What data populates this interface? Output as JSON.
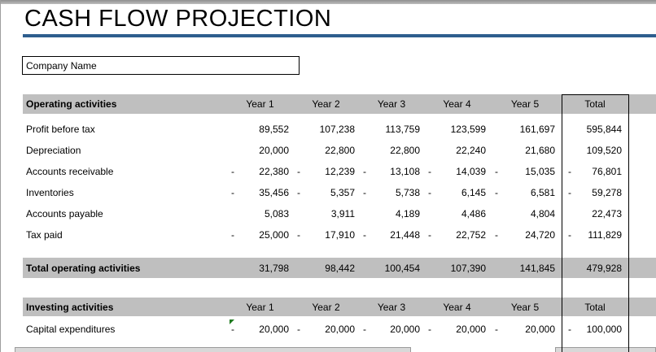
{
  "title": "CASH FLOW PROJECTION",
  "company": {
    "value": "Company Name"
  },
  "columns": [
    "Year 1",
    "Year 2",
    "Year 3",
    "Year 4",
    "Year 5",
    "Total"
  ],
  "sections": [
    {
      "id": "operating",
      "header": "Operating activities",
      "rows": [
        {
          "label": "Profit before tax",
          "values": [
            89552,
            107238,
            113759,
            123599,
            161697,
            595844
          ]
        },
        {
          "label": "Depreciation",
          "values": [
            20000,
            22800,
            22800,
            22240,
            21680,
            109520
          ]
        },
        {
          "label": "Accounts receivable",
          "values": [
            -22380,
            -12239,
            -13108,
            -14039,
            -15035,
            -76801
          ]
        },
        {
          "label": "Inventories",
          "values": [
            -35456,
            -5357,
            -5738,
            -6145,
            -6581,
            -59278
          ]
        },
        {
          "label": "Accounts payable",
          "values": [
            5083,
            3911,
            4189,
            4486,
            4804,
            22473
          ]
        },
        {
          "label": "Tax paid",
          "values": [
            -25000,
            -17910,
            -21448,
            -22752,
            -24720,
            -111829
          ]
        }
      ],
      "total_row": {
        "label": "Total operating activities",
        "values": [
          31798,
          98442,
          100454,
          107390,
          141845,
          479928
        ]
      }
    },
    {
      "id": "investing",
      "header": "Investing activities",
      "rows": [
        {
          "label": "Capital expenditures",
          "values": [
            -20000,
            -20000,
            -20000,
            -20000,
            -20000,
            -100000
          ],
          "has_error_marker": true
        }
      ]
    }
  ],
  "colors": {
    "title_rule_blue": "#2E5E8E",
    "band_gray": "#BFBFBF",
    "error_marker_green": "#1F7A1F",
    "total_box_border": "#000000"
  },
  "number_format": "accounting-negative-leading-dash"
}
